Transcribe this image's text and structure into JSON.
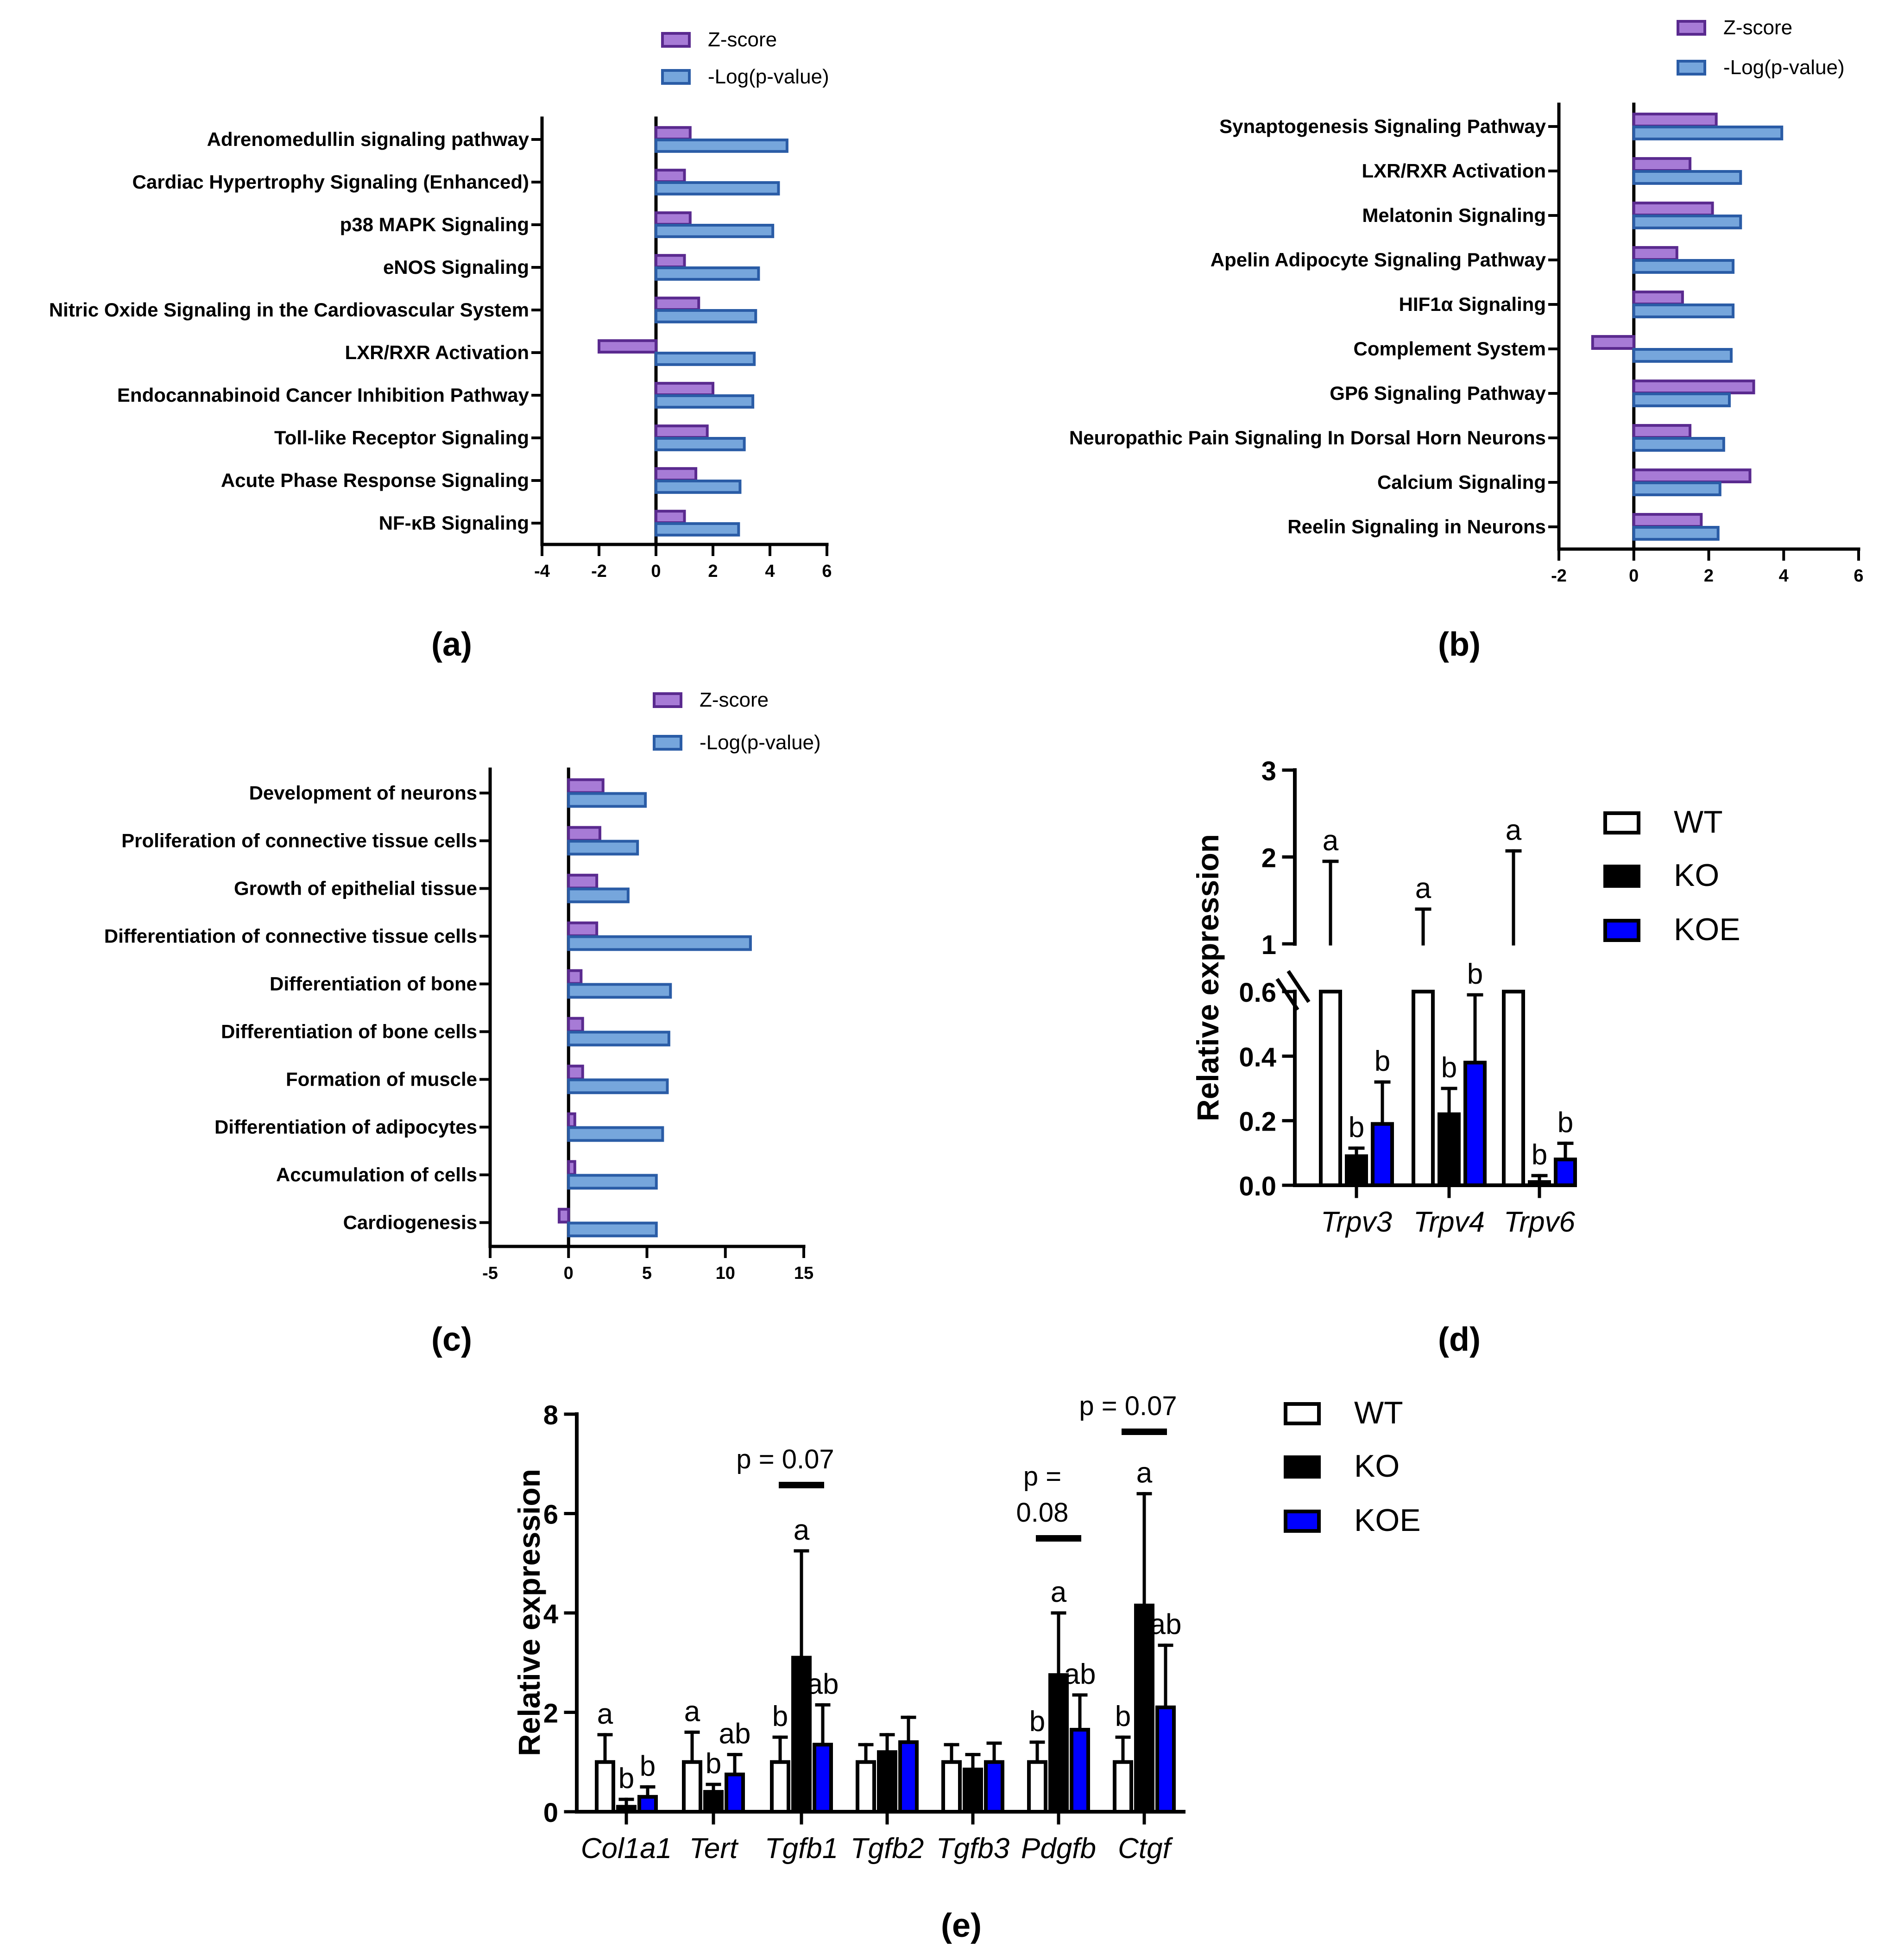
{
  "panel_labels": [
    "(a)",
    "(b)",
    "(c)",
    "(d)",
    "(e)"
  ],
  "colors": {
    "zscore_fill": "#A77BD6",
    "zscore_stroke": "#5A2A8F",
    "logp_fill": "#76A6DC",
    "logp_stroke": "#2A5CA6",
    "ko": "#000000",
    "koe": "#0000FF",
    "wt": "#FFFFFF"
  },
  "chart_data": [
    {
      "id": "a",
      "type": "bar",
      "orientation": "horizontal",
      "legend": [
        "Z-score",
        "-Log(p-value)"
      ],
      "legend_position": "top",
      "categories": [
        "Adrenomedullin signaling pathway",
        "Cardiac Hypertrophy Signaling (Enhanced)",
        "p38 MAPK Signaling",
        "eNOS Signaling",
        "Nitric Oxide Signaling in the Cardiovascular System",
        "LXR/RXR Activation",
        "Endocannabinoid Cancer Inhibition Pathway",
        "Toll-like Receptor Signaling",
        "Acute Phase Response Signaling",
        "NF-κB Signaling"
      ],
      "series": [
        {
          "name": "Z-score",
          "values": [
            1.2,
            1.0,
            1.2,
            1.0,
            1.5,
            -2.0,
            2.0,
            1.8,
            1.4,
            1.0
          ]
        },
        {
          "name": "-Log(p-value)",
          "values": [
            4.6,
            4.3,
            4.1,
            3.6,
            3.5,
            3.45,
            3.4,
            3.1,
            2.95,
            2.9
          ]
        }
      ],
      "xlim": [
        -4,
        6
      ],
      "xticks": [
        "-4",
        "-2",
        "0",
        "2",
        "4",
        "6"
      ]
    },
    {
      "id": "b",
      "type": "bar",
      "orientation": "horizontal",
      "legend": [
        "Z-score",
        "-Log(p-value)"
      ],
      "legend_position": "top-right",
      "categories": [
        "Synaptogenesis Signaling Pathway",
        "LXR/RXR Activation",
        "Melatonin Signaling",
        "Apelin Adipocyte Signaling Pathway",
        "HIF1α Signaling",
        "Complement System",
        "GP6 Signaling Pathway",
        "Neuropathic Pain Signaling In Dorsal Horn Neurons",
        "Calcium Signaling",
        "Reelin Signaling in Neurons"
      ],
      "series": [
        {
          "name": "Z-score",
          "values": [
            2.2,
            1.5,
            2.1,
            1.15,
            1.3,
            -1.1,
            3.2,
            1.5,
            3.1,
            1.8
          ]
        },
        {
          "name": "-Log(p-value)",
          "values": [
            3.95,
            2.85,
            2.85,
            2.65,
            2.65,
            2.6,
            2.55,
            2.4,
            2.3,
            2.25
          ]
        }
      ],
      "xlim": [
        -2,
        6
      ],
      "xticks": [
        "-2",
        "0",
        "2",
        "4",
        "6"
      ]
    },
    {
      "id": "c",
      "type": "bar",
      "orientation": "horizontal",
      "legend": [
        "Z-score",
        "-Log(p-value)"
      ],
      "legend_position": "top",
      "categories": [
        "Development of neurons",
        "Proliferation of connective tissue cells",
        "Growth of epithelial tissue",
        "Differentiation of connective tissue cells",
        "Differentiation of bone",
        "Differentiation of bone cells",
        "Formation of muscle",
        "Differentiation of adipocytes",
        "Accumulation of cells",
        "Cardiogenesis"
      ],
      "series": [
        {
          "name": "Z-score",
          "values": [
            2.2,
            2.0,
            1.8,
            1.8,
            0.8,
            0.9,
            0.9,
            0.4,
            0.4,
            -0.6
          ]
        },
        {
          "name": "-Log(p-value)",
          "values": [
            4.9,
            4.4,
            3.8,
            11.6,
            6.5,
            6.4,
            6.3,
            6.0,
            5.6,
            5.6
          ]
        }
      ],
      "xlim": [
        -5,
        15
      ],
      "xticks": [
        "-5",
        "0",
        "5",
        "10",
        "15"
      ]
    },
    {
      "id": "d",
      "type": "bar",
      "ylabel": "Relative expression",
      "axis_break": true,
      "categories": [
        "Trpv3",
        "Trpv4",
        "Trpv6"
      ],
      "legend": [
        "WT",
        "KO",
        "KOE"
      ],
      "series": [
        {
          "name": "WT",
          "values": [
            1.0,
            1.0,
            1.0
          ],
          "errors": [
            0.95,
            0.4,
            1.07
          ],
          "letters": [
            "a",
            "a",
            "a"
          ]
        },
        {
          "name": "KO",
          "values": [
            0.09,
            0.22,
            0.01
          ],
          "errors": [
            0.025,
            0.08,
            0.02
          ],
          "letters": [
            "b",
            "b",
            "b"
          ]
        },
        {
          "name": "KOE",
          "values": [
            0.19,
            0.38,
            0.08
          ],
          "errors": [
            0.13,
            0.21,
            0.05
          ],
          "letters": [
            "b",
            "b",
            "b"
          ]
        }
      ],
      "yticks_lower": [
        "0.0",
        "0.2",
        "0.4",
        "0.6"
      ],
      "yticks_upper": [
        "1",
        "2",
        "3"
      ],
      "ylim_lower": [
        0,
        0.6
      ],
      "ylim_upper": [
        1,
        3
      ]
    },
    {
      "id": "e",
      "type": "bar",
      "ylabel": "Relative expression",
      "categories": [
        "Col1a1",
        "Tert",
        "Tgfb1",
        "Tgfb2",
        "Tgfb3",
        "Pdgfb",
        "Ctgf"
      ],
      "legend": [
        "WT",
        "KO",
        "KOE"
      ],
      "series": [
        {
          "name": "WT",
          "values": [
            1.0,
            1.0,
            1.0,
            1.0,
            1.0,
            1.0,
            1.0
          ],
          "errors": [
            0.55,
            0.6,
            0.5,
            0.35,
            0.35,
            0.4,
            0.5
          ],
          "letters": [
            "a",
            "a",
            "b",
            "",
            "",
            "b",
            "b"
          ]
        },
        {
          "name": "KO",
          "values": [
            0.1,
            0.4,
            3.1,
            1.2,
            0.85,
            2.75,
            4.15
          ],
          "errors": [
            0.15,
            0.15,
            2.15,
            0.35,
            0.3,
            1.25,
            2.25
          ],
          "letters": [
            "b",
            "b",
            "a",
            "",
            "",
            "a",
            "a"
          ]
        },
        {
          "name": "KOE",
          "values": [
            0.3,
            0.75,
            1.35,
            1.4,
            1.0,
            1.65,
            2.1
          ],
          "errors": [
            0.2,
            0.4,
            0.8,
            0.5,
            0.38,
            0.7,
            1.25
          ],
          "letters": [
            "b",
            "ab",
            "ab",
            "",
            "",
            "ab",
            "ab"
          ]
        }
      ],
      "yticks": [
        "0",
        "2",
        "4",
        "6",
        "8"
      ],
      "ylim": [
        0,
        8
      ],
      "annotations": [
        {
          "category": "Tgfb1",
          "lines": [
            "p = 0.07"
          ]
        },
        {
          "category": "Pdgfb",
          "lines": [
            "p =",
            "0.08"
          ]
        },
        {
          "category": "Ctgf",
          "lines": [
            "p = 0.07"
          ]
        }
      ]
    }
  ]
}
